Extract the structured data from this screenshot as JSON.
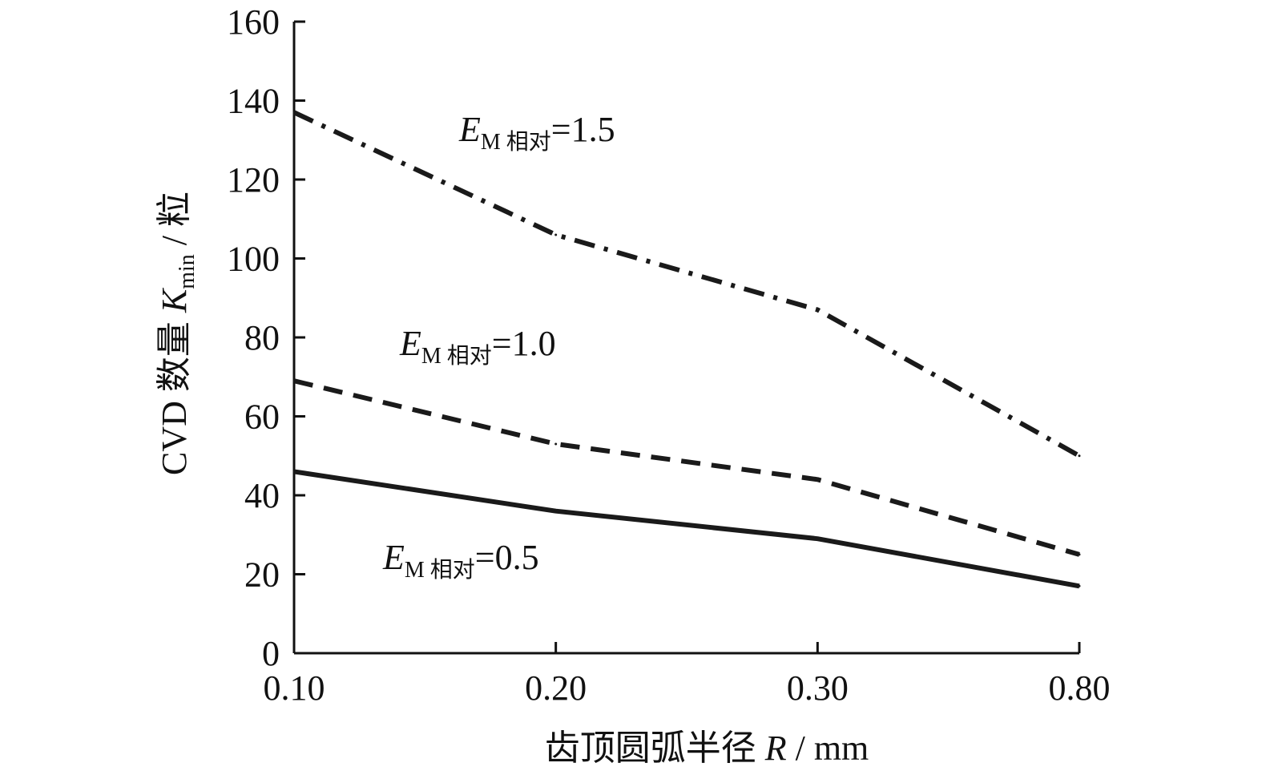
{
  "chart_data": {
    "type": "line",
    "xlabel": {
      "prefix": "齿顶圆弧半径 ",
      "var": "R",
      "unit": " / mm"
    },
    "ylabel": {
      "prefix": "CVD 数量 ",
      "var": "K",
      "sub": "min",
      "unit": " / 粒"
    },
    "categories": [
      "0.10",
      "0.20",
      "0.30",
      "0.80"
    ],
    "ylim": [
      0,
      160
    ],
    "yticks": [
      "0",
      "20",
      "40",
      "60",
      "80",
      "100",
      "120",
      "140",
      "160"
    ],
    "grid": false,
    "series": [
      {
        "label": {
          "var": "E",
          "sub": "M 相对",
          "value": "=1.5"
        },
        "style": "dash-dot",
        "values": [
          137,
          106,
          87,
          50
        ],
        "color": "#1a1a1a"
      },
      {
        "label": {
          "var": "E",
          "sub": "M 相对",
          "value": "=1.0"
        },
        "style": "dash",
        "values": [
          69,
          53,
          44,
          25
        ],
        "color": "#1a1a1a"
      },
      {
        "label": {
          "var": "E",
          "sub": "M 相对",
          "value": "=0.5"
        },
        "style": "solid",
        "values": [
          46,
          36,
          29,
          17
        ],
        "color": "#1a1a1a"
      }
    ]
  }
}
